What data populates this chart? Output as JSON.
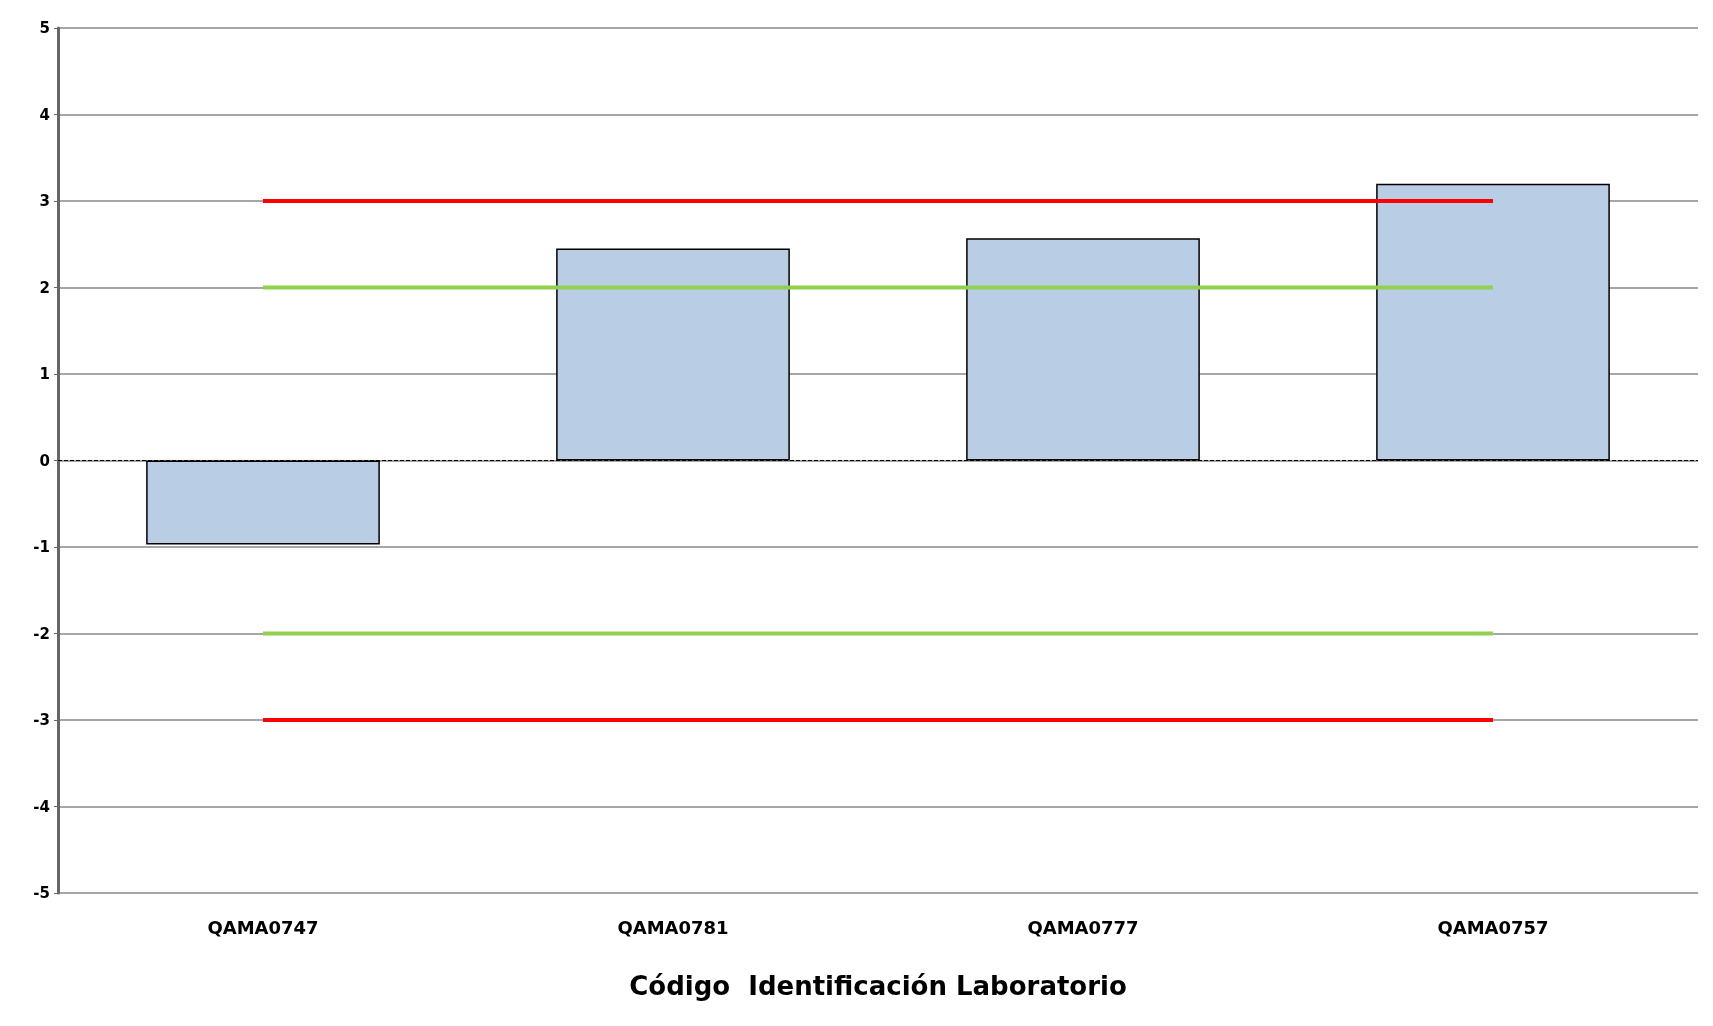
{
  "chart_data": {
    "type": "bar",
    "xlabel": "Código  Identificación Laboratorio",
    "categories": [
      "QAMA0747",
      "QAMA0781",
      "QAMA0777",
      "QAMA0757"
    ],
    "series": [
      {
        "color": "#b9cde5",
        "values": [
          -0.97,
          2.45,
          2.57,
          3.2
        ]
      },
      {
        "type": "line",
        "color": "#ff0000",
        "values": [
          3,
          3,
          3,
          3
        ]
      },
      {
        "type": "line",
        "color": "#92d050",
        "values": [
          2,
          2,
          2,
          2
        ]
      },
      {
        "type": "line",
        "color": "#92d050",
        "values": [
          -2,
          -2,
          -2,
          -2
        ]
      },
      {
        "type": "line",
        "color": "#ff0000",
        "values": [
          -3,
          -3,
          -3,
          -3
        ]
      }
    ],
    "ylim": [
      -5,
      5
    ],
    "yticks": [
      -5,
      -4,
      -3,
      -2,
      -1,
      0,
      1,
      2,
      3,
      4,
      5
    ],
    "grid": "y",
    "marker": "none",
    "ref_lines": [
      {
        "axis": "y",
        "value": 0,
        "color": "#000000",
        "line_style": "dashed"
      }
    ]
  }
}
